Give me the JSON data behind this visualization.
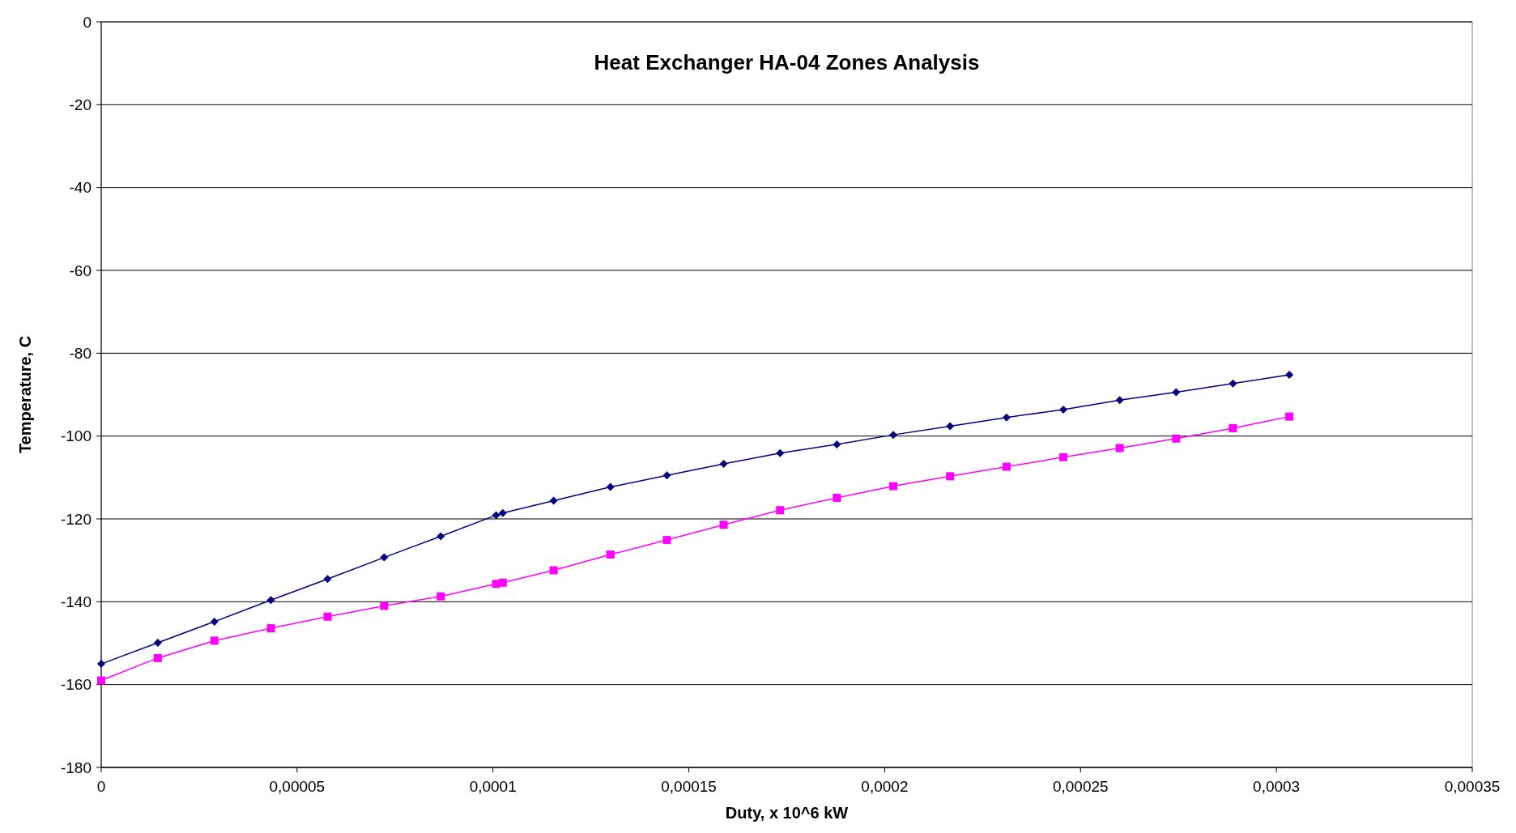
{
  "chart_data": {
    "type": "line",
    "title": "Heat Exchanger HA-04 Zones Analysis",
    "xlabel": "Duty, x 10^6 kW",
    "ylabel": "Temperature, C",
    "x": [
      0,
      1.444e-05,
      2.889e-05,
      4.333e-05,
      5.778e-05,
      7.222e-05,
      8.667e-05,
      0.0001008,
      0.0001025,
      0.0001155,
      0.00013,
      0.0001444,
      0.0001589,
      0.0001733,
      0.0001878,
      0.0002022,
      0.0002167,
      0.0002311,
      0.0002456,
      0.00026,
      0.0002744,
      0.0002889,
      0.0003033
    ],
    "series": [
      {
        "color": "#000080",
        "marker": "diamond",
        "values": [
          -155.0,
          -149.9,
          -144.8,
          -139.6,
          -134.5,
          -129.3,
          -124.2,
          -119.1,
          -118.6,
          -115.6,
          -112.3,
          -109.5,
          -106.7,
          -104.1,
          -102.0,
          -99.7,
          -97.6,
          -95.5,
          -93.6,
          -91.3,
          -89.4,
          -87.3,
          -85.2
        ]
      },
      {
        "color": "#ff00ff",
        "marker": "square",
        "values": [
          -159.0,
          -153.6,
          -149.4,
          -146.4,
          -143.6,
          -141.0,
          -138.7,
          -135.7,
          -135.4,
          -132.4,
          -128.6,
          -125.1,
          -121.4,
          -117.9,
          -114.9,
          -112.1,
          -109.7,
          -107.4,
          -105.1,
          -102.9,
          -100.6,
          -98.1,
          -95.3
        ]
      }
    ],
    "xlim": [
      0,
      0.00035
    ],
    "xticks": [
      0,
      {
        "value": 5e-05,
        "label": "0,00005"
      },
      {
        "value": 0.0001,
        "label": "0,0001"
      },
      {
        "value": 0.00015,
        "label": "0,00015"
      },
      {
        "value": 0.0002,
        "label": "0,0002"
      },
      {
        "value": 0.00025,
        "label": "0,00025"
      },
      {
        "value": 0.0003,
        "label": "0,0003"
      },
      {
        "value": 0.00035,
        "label": "0,00035"
      }
    ],
    "ylim": [
      -180,
      0
    ],
    "yticks": [
      -180,
      -160,
      -140,
      -120,
      -100,
      -80,
      -60,
      -40,
      -20,
      0
    ],
    "grid": "y",
    "line_style": "solid"
  }
}
